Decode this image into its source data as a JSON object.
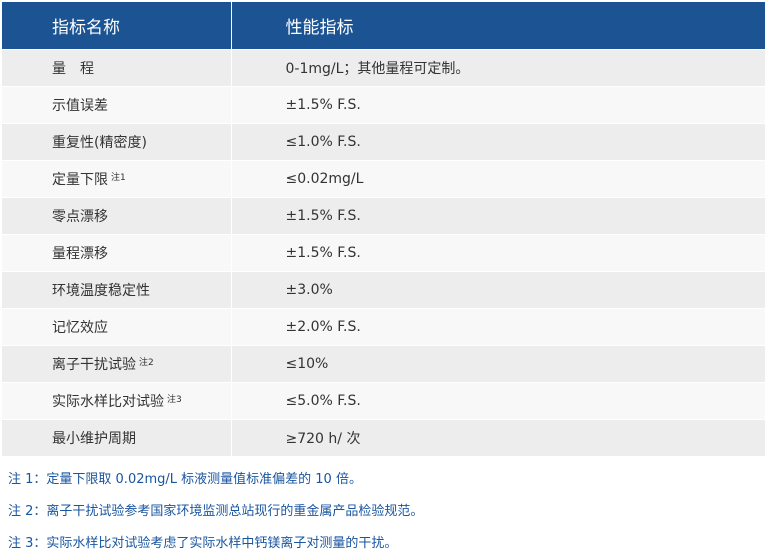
{
  "table": {
    "headers": [
      "指标名称",
      "性能指标"
    ],
    "rows": [
      {
        "name": "量　程",
        "note": "",
        "value": "0-1mg/L；其他量程可定制。"
      },
      {
        "name": "示值误差",
        "note": "",
        "value": "±1.5% F.S."
      },
      {
        "name": "重复性(精密度)",
        "note": "",
        "value": "≤1.0% F.S."
      },
      {
        "name": "定量下限",
        "note": "注1",
        "value": "≤0.02mg/L"
      },
      {
        "name": "零点漂移",
        "note": "",
        "value": "±1.5% F.S."
      },
      {
        "name": "量程漂移",
        "note": "",
        "value": "±1.5% F.S."
      },
      {
        "name": "环境温度稳定性",
        "note": "",
        "value": "±3.0%"
      },
      {
        "name": "记忆效应",
        "note": "",
        "value": "±2.0% F.S."
      },
      {
        "name": "离子干扰试验",
        "note": "注2",
        "value": "≤10%"
      },
      {
        "name": "实际水样比对试验",
        "note": "注3",
        "value": "≤5.0% F.S."
      },
      {
        "name": "最小维护周期",
        "note": "",
        "value": "≥720 h/ 次"
      }
    ]
  },
  "notes": [
    "注 1：定量下限取 0.02mg/L 标液测量值标准偏差的 10 倍。",
    "注 2：离子干扰试验参考国家环境监测总站现行的重金属产品检验规范。",
    "注 3：实际水样比对试验考虑了实际水样中钙镁离子对测量的干扰。"
  ],
  "colors": {
    "header_bg": "#1b5393",
    "row_odd": "#ededed",
    "row_even": "#f8f8f8",
    "note_text": "#1a56a0"
  }
}
